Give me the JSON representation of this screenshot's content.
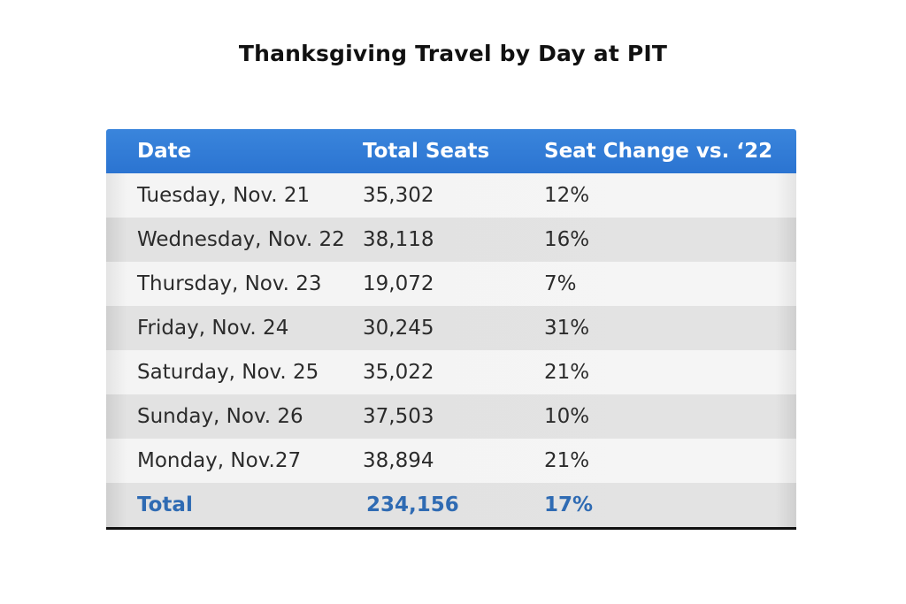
{
  "title": "Thanksgiving Travel by Day at PIT",
  "table": {
    "headers": [
      "Date",
      "Total Seats",
      "Seat Change vs. ‘22"
    ],
    "rows": [
      [
        "Tuesday, Nov. 21",
        "35,302",
        "12%"
      ],
      [
        "Wednesday, Nov. 22",
        "38,118",
        "16%"
      ],
      [
        "Thursday, Nov. 23",
        "19,072",
        "7%"
      ],
      [
        "Friday, Nov. 24",
        "30,245",
        "31%"
      ],
      [
        "Saturday, Nov. 25",
        "35,022",
        "21%"
      ],
      [
        "Sunday, Nov. 26",
        "37,503",
        "10%"
      ],
      [
        "Monday, Nov.27",
        "38,894",
        "21%"
      ]
    ],
    "total": [
      "Total",
      "234,156",
      "17%"
    ]
  },
  "colors": {
    "header_bg": "#2f7bd6",
    "header_text": "#ffffff",
    "total_text": "#2f6bb3",
    "body_text": "#2b2b2b"
  }
}
